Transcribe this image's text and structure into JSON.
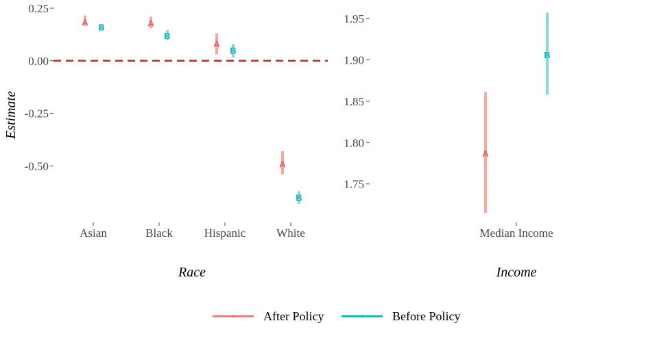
{
  "chart_data": [
    {
      "type": "errorbar",
      "panel": "Race",
      "xlabel": "Race",
      "ylabel": "Estimate",
      "categories": [
        "Asian",
        "Black",
        "Hispanic",
        "White"
      ],
      "ylim": [
        -0.72,
        0.25
      ],
      "yticks": [
        0.25,
        0.0,
        -0.25,
        -0.5
      ],
      "ytick_labels": [
        "0.25",
        "0.00",
        "-0.25",
        "-0.50"
      ],
      "reference_line": {
        "y": 0,
        "style": "dashed",
        "color": "#cc2222"
      },
      "series": [
        {
          "name": "After Policy",
          "label": "A",
          "color": "#f8766d",
          "points": [
            {
              "category": "Asian",
              "estimate": 0.185,
              "low": 0.165,
              "high": 0.215
            },
            {
              "category": "Black",
              "estimate": 0.18,
              "low": 0.155,
              "high": 0.21
            },
            {
              "category": "Hispanic",
              "estimate": 0.08,
              "low": 0.03,
              "high": 0.13
            },
            {
              "category": "White",
              "estimate": -0.49,
              "low": -0.54,
              "high": -0.43
            }
          ]
        },
        {
          "name": "Before Policy",
          "label": "B",
          "color": "#00bfc4",
          "points": [
            {
              "category": "Asian",
              "estimate": 0.16,
              "low": 0.145,
              "high": 0.175
            },
            {
              "category": "Black",
              "estimate": 0.12,
              "low": 0.1,
              "high": 0.145
            },
            {
              "category": "Hispanic",
              "estimate": 0.05,
              "low": 0.015,
              "high": 0.08
            },
            {
              "category": "White",
              "estimate": -0.65,
              "low": -0.68,
              "high": -0.62
            }
          ]
        }
      ]
    },
    {
      "type": "errorbar",
      "panel": "Income",
      "xlabel": "Income",
      "categories": [
        "Median Income"
      ],
      "ylim": [
        1.715,
        1.96
      ],
      "yticks": [
        1.95,
        1.9,
        1.85,
        1.8,
        1.75
      ],
      "ytick_labels": [
        "1.95",
        "1.90",
        "1.85",
        "1.80",
        "1.75"
      ],
      "series": [
        {
          "name": "After Policy",
          "label": "A",
          "color": "#f8766d",
          "points": [
            {
              "category": "Median Income",
              "estimate": 1.787,
              "low": 1.715,
              "high": 1.861
            }
          ]
        },
        {
          "name": "Before Policy",
          "label": "B",
          "color": "#00bfc4",
          "points": [
            {
              "category": "Median Income",
              "estimate": 1.906,
              "low": 1.858,
              "high": 1.957
            }
          ]
        }
      ]
    }
  ],
  "legend": {
    "position": "bottom",
    "items": [
      {
        "label": "After Policy",
        "color": "#f8766d"
      },
      {
        "label": "Before Policy",
        "color": "#00bfc4"
      }
    ]
  }
}
